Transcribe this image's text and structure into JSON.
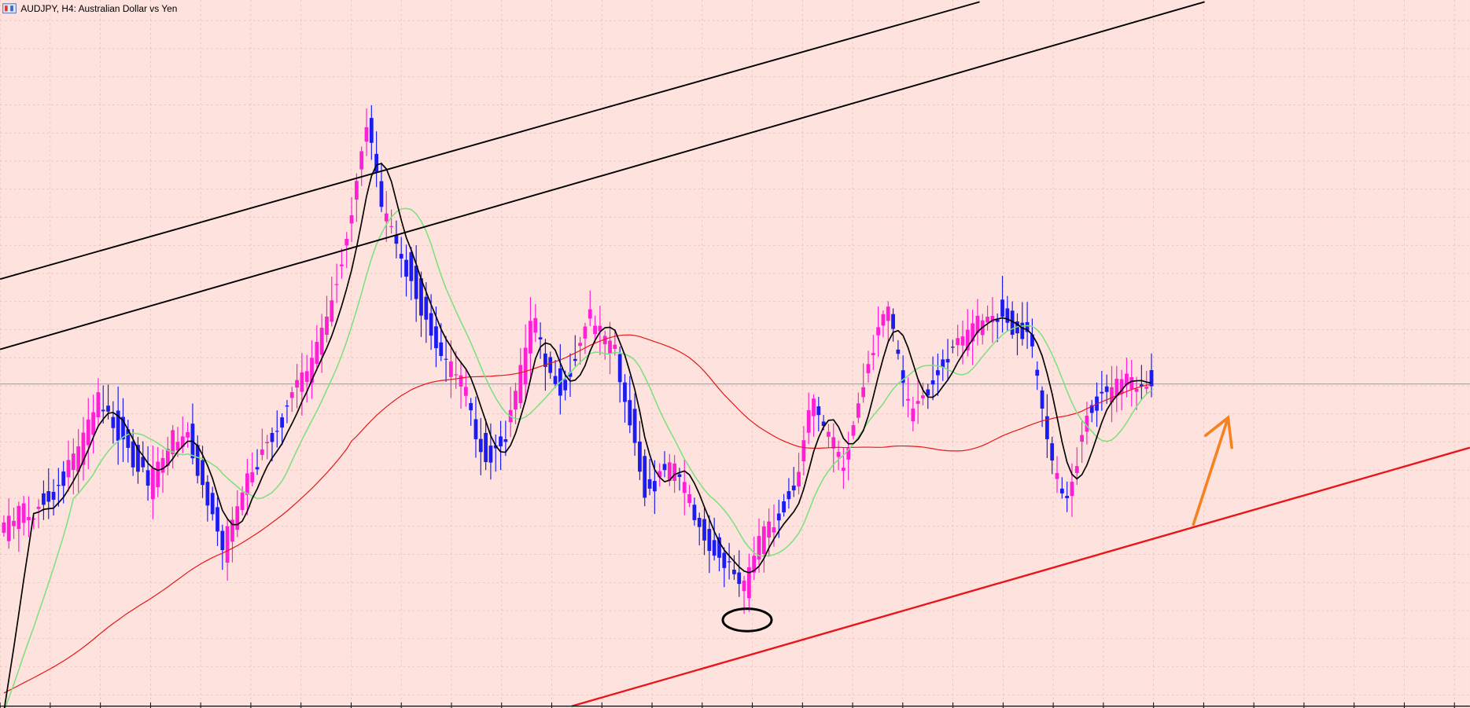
{
  "window": {
    "title": "AUDJPY, H4:  Australian Dollar vs Yen"
  }
}
